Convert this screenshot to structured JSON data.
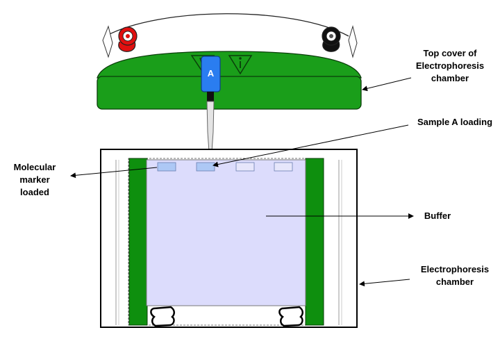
{
  "labels": {
    "top_cover": [
      "Top cover of",
      "Electrophoresis",
      "chamber"
    ],
    "sample_loading": "Sample A loading",
    "molecular_marker": [
      "Molecular",
      "marker",
      "loaded"
    ],
    "buffer": "Buffer",
    "chamber": [
      "Electrophoresis",
      "chamber"
    ]
  },
  "pipette_label": "A",
  "colors": {
    "cover_green": "#1a9e1a",
    "electrode_green": "#0e8f0e",
    "buffer_fill": "#dcdcfc",
    "well_fill": "#adc8f5",
    "pipette_blue": "#2a7df0",
    "anode_red": "#e01010",
    "cathode_black": "#111111"
  },
  "icons": [
    "warning-triangle-icon",
    "info-triangle-icon",
    "red-electrode-terminal-icon",
    "black-electrode-terminal-icon"
  ]
}
